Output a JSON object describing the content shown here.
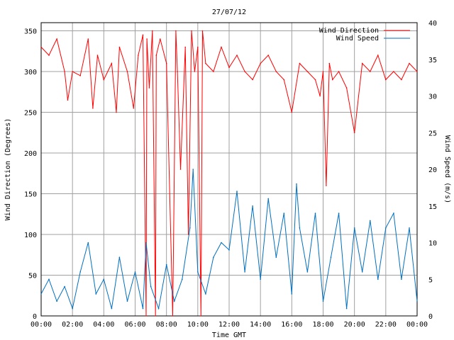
{
  "chart_data": {
    "type": "line",
    "title": "27/07/12",
    "xlabel": "Time GMT",
    "ylabel_left": "Wind Direction (Degrees)",
    "ylabel_right": "Wind Speed (m/s)",
    "x_range_hours": [
      0,
      24
    ],
    "x_ticks": [
      "00:00",
      "02:00",
      "04:00",
      "06:00",
      "08:00",
      "10:00",
      "12:00",
      "14:00",
      "16:00",
      "18:00",
      "20:00",
      "22:00",
      "00:00"
    ],
    "y_left_range": [
      0,
      360
    ],
    "y_left_ticks": [
      "0",
      "50",
      "100",
      "150",
      "200",
      "250",
      "300",
      "350"
    ],
    "y_left_tick_values": [
      0,
      50,
      100,
      150,
      200,
      250,
      300,
      350
    ],
    "y_right_range": [
      0,
      40
    ],
    "y_right_ticks": [
      "0",
      "5",
      "10",
      "15",
      "20",
      "25",
      "30",
      "35",
      "40"
    ],
    "y_right_tick_values": [
      0,
      5,
      10,
      15,
      20,
      25,
      30,
      35,
      40
    ],
    "grid": true,
    "legend": "top-right",
    "series": [
      {
        "name": "Wind Direction",
        "axis": "left",
        "color": "#ff0000",
        "x": [
          0,
          0.5,
          1,
          1.5,
          1.7,
          2,
          2.5,
          3,
          3.3,
          3.6,
          4,
          4.5,
          4.8,
          5,
          5.5,
          5.9,
          6.2,
          6.5,
          6.7,
          6.75,
          6.9,
          7.1,
          7.3,
          7.35,
          7.6,
          8,
          8.4,
          8.6,
          8.7,
          8.9,
          9.2,
          9.4,
          9.6,
          9.8,
          10,
          10.2,
          10.3,
          10.5,
          11,
          11.5,
          12,
          12.5,
          13,
          13.5,
          14,
          14.5,
          15,
          15.5,
          16,
          16.5,
          17,
          17.5,
          17.8,
          18,
          18.2,
          18.4,
          18.6,
          19,
          19.5,
          20,
          20.5,
          21,
          21.5,
          22,
          22.5,
          23,
          23.5,
          24
        ],
        "values": [
          330,
          320,
          340,
          300,
          265,
          300,
          295,
          340,
          255,
          320,
          290,
          310,
          250,
          330,
          300,
          255,
          320,
          345,
          0,
          340,
          280,
          350,
          0,
          320,
          340,
          310,
          0,
          350,
          300,
          180,
          330,
          100,
          350,
          300,
          330,
          0,
          350,
          310,
          300,
          330,
          305,
          320,
          300,
          290,
          310,
          320,
          300,
          290,
          250,
          310,
          300,
          290,
          270,
          300,
          160,
          310,
          290,
          300,
          280,
          225,
          310,
          300,
          320,
          290,
          300,
          290,
          310,
          300
        ]
      },
      {
        "name": "Wind Speed",
        "axis": "right",
        "color": "#0070c0",
        "x": [
          0,
          0.5,
          1,
          1.5,
          2,
          2.5,
          3,
          3.5,
          4,
          4.5,
          5,
          5.5,
          6,
          6.5,
          6.7,
          7,
          7.5,
          8,
          8.5,
          9,
          9.5,
          9.7,
          10,
          10.5,
          11,
          11.5,
          12,
          12.5,
          13,
          13.5,
          14,
          14.5,
          15,
          15.5,
          16,
          16.3,
          16.5,
          17,
          17.5,
          18,
          18.5,
          19,
          19.5,
          20,
          20.5,
          21,
          21.5,
          22,
          22.5,
          23,
          23.5,
          24
        ],
        "values": [
          3,
          5,
          2,
          4,
          1,
          6,
          10,
          3,
          5,
          1,
          8,
          2,
          6,
          1,
          10,
          4,
          1,
          7,
          2,
          5,
          12,
          20,
          6,
          3,
          8,
          10,
          9,
          17,
          6,
          15,
          5,
          16,
          8,
          14,
          3,
          18,
          12,
          6,
          14,
          2,
          8,
          14,
          1,
          12,
          6,
          13,
          5,
          12,
          14,
          5,
          12,
          2
        ]
      }
    ]
  }
}
